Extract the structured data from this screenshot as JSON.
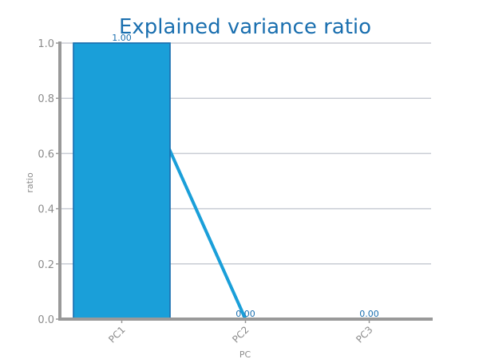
{
  "chart_data": {
    "type": "bar",
    "title": "Explained variance ratio",
    "xlabel": "PC",
    "ylabel": "ratio",
    "categories": [
      "PC1",
      "PC2",
      "PC3"
    ],
    "series": [
      {
        "type": "bar",
        "values": [
          1.0,
          0.0,
          0.0
        ]
      },
      {
        "type": "line",
        "values": [
          1.0,
          0.0,
          0.0
        ]
      }
    ],
    "data_labels": [
      "1.00",
      "0.00",
      "0.00"
    ],
    "y_ticks": [
      0.0,
      0.2,
      0.4,
      0.6,
      0.8,
      1.0
    ],
    "y_tick_labels": [
      "0.0",
      "0.2",
      "0.4",
      "0.6",
      "0.8",
      "1.0"
    ],
    "ylim": [
      0,
      1.0
    ],
    "grid": true,
    "legend": false,
    "colors": {
      "bar_fill": "#1a9fd9",
      "bar_edge": "#1a6faf",
      "line": "#1a9fd9",
      "title": "#1a6faf",
      "data_label": "#1a6faf",
      "axis": "#999999",
      "grid": "#c8ccd4",
      "tick_label": "#8c8c8c"
    }
  }
}
